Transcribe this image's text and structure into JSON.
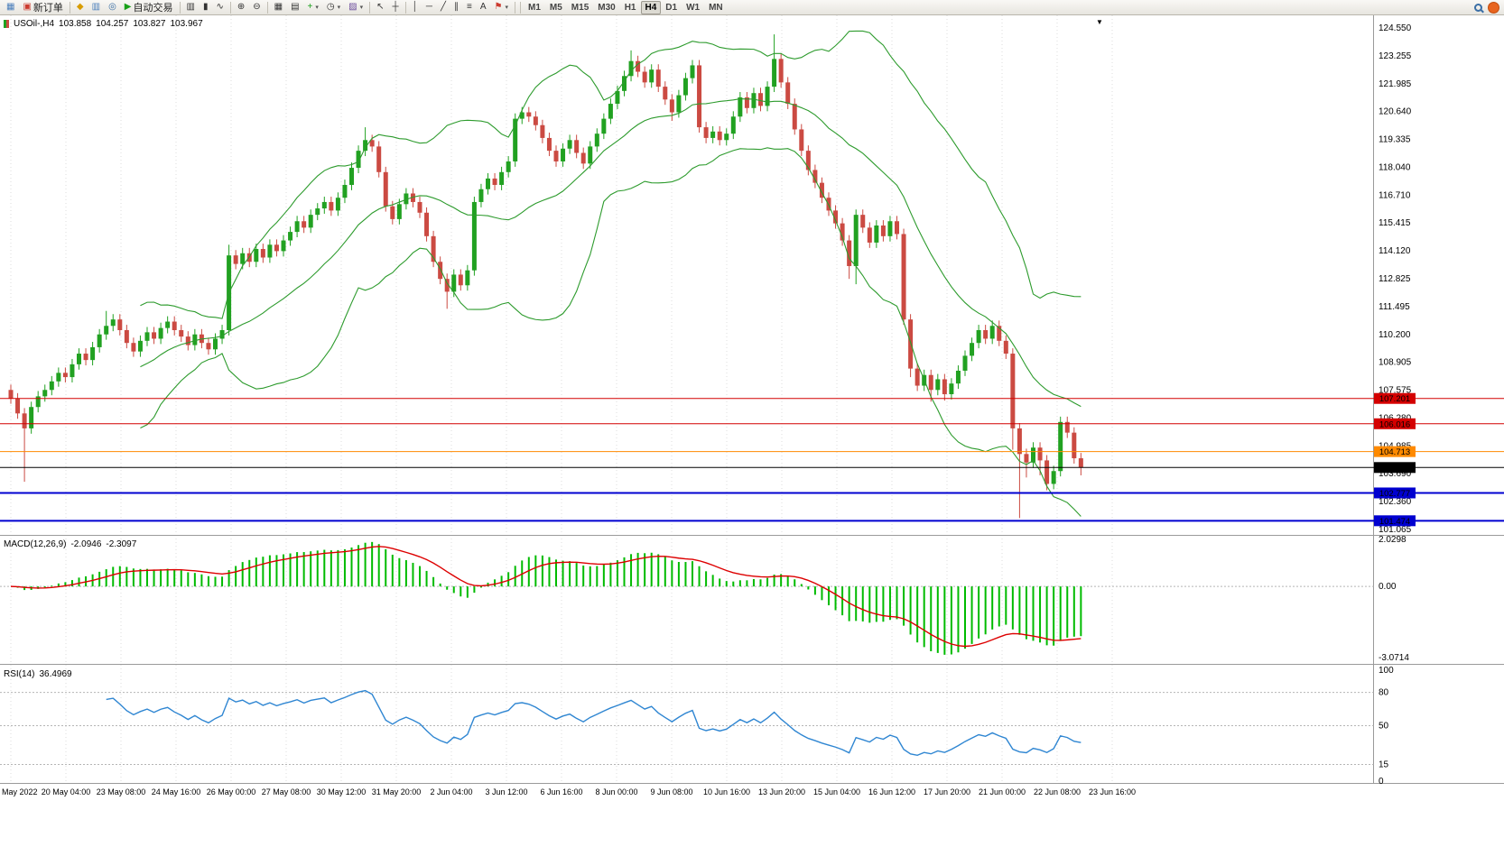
{
  "toolbar": {
    "buttons": [
      {
        "name": "new-chart-button",
        "icon": "▦",
        "icon_color": "#4a7ebb"
      },
      {
        "name": "new-order-button",
        "icon": "▣",
        "icon_color": "#cc3b2f",
        "label": "新订单"
      },
      {
        "sep": true
      },
      {
        "name": "market-watch-button",
        "icon": "◆",
        "icon_color": "#d89c00"
      },
      {
        "name": "data-window-button",
        "icon": "▥",
        "icon_color": "#4a7ebb"
      },
      {
        "name": "navigator-button",
        "icon": "◎",
        "icon_color": "#3a6ea5"
      },
      {
        "name": "autotrade-button",
        "icon": "▶",
        "icon_color": "#18a018",
        "label": "自动交易"
      },
      {
        "sep": true
      },
      {
        "name": "bar-chart-button",
        "icon": "▥",
        "icon_color": "#333333"
      },
      {
        "name": "candlestick-chart-button",
        "icon": "▮",
        "icon_color": "#333333"
      },
      {
        "name": "line-chart-button",
        "icon": "∿",
        "icon_color": "#333333"
      },
      {
        "sep": true
      },
      {
        "name": "zoom-in-button",
        "icon": "⊕",
        "icon_color": "#333333"
      },
      {
        "name": "zoom-out-button",
        "icon": "⊖",
        "icon_color": "#333333"
      },
      {
        "sep": true
      },
      {
        "name": "tile-windows-button",
        "icon": "▦",
        "icon_color": "#333333"
      },
      {
        "name": "auto-arrange-button",
        "icon": "▤",
        "icon_color": "#333333"
      },
      {
        "name": "indicators-button",
        "icon": "+",
        "icon_color": "#18a018",
        "caret": true
      },
      {
        "name": "periods-button",
        "icon": "◷",
        "icon_color": "#333333",
        "caret": true
      },
      {
        "name": "templates-button",
        "icon": "▨",
        "icon_color": "#6a4a9c",
        "caret": true
      },
      {
        "sep": true
      },
      {
        "name": "cursor-button",
        "icon": "↖",
        "icon_color": "#333333"
      },
      {
        "name": "crosshair-button",
        "icon": "┼",
        "icon_color": "#333333"
      },
      {
        "sep": true
      },
      {
        "name": "vertical-line-button",
        "icon": "│",
        "icon_color": "#333333"
      },
      {
        "name": "horizontal-line-button",
        "icon": "─",
        "icon_color": "#333333"
      },
      {
        "name": "trendline-button",
        "icon": "╱",
        "icon_color": "#333333"
      },
      {
        "name": "channel-button",
        "icon": "∥",
        "icon_color": "#333333"
      },
      {
        "name": "fibonacci-button",
        "icon": "≡",
        "icon_color": "#333333"
      },
      {
        "name": "text-button",
        "icon": "A",
        "icon_color": "#333333"
      },
      {
        "name": "arrows-button",
        "icon": "⚑",
        "icon_color": "#cc3b2f",
        "caret": true
      },
      {
        "sep": true
      }
    ],
    "timeframes": [
      "M1",
      "M5",
      "M15",
      "M30",
      "H1",
      "H4",
      "D1",
      "W1",
      "MN"
    ],
    "active_timeframe": "H4"
  },
  "chart": {
    "header": {
      "symbol": "USOil-,H4",
      "open": "103.858",
      "high": "104.257",
      "low": "103.827",
      "close": "103.967"
    }
  },
  "chart_data": {
    "type": "candlestick",
    "symbol": "USOil-",
    "timeframe": "H4",
    "colors": {
      "up": "#21a121",
      "down": "#cb4a42",
      "bollinger": "#2d9b2d",
      "macd_hist": "#00bb00",
      "macd_signal": "#dd0000",
      "rsi": "#2f86d2",
      "grid": "#dcdcdc"
    },
    "price_axis": {
      "min": 101.065,
      "max": 124.55,
      "labels": [
        "124.550",
        "123.255",
        "121.985",
        "120.640",
        "119.335",
        "118.040",
        "116.710",
        "115.415",
        "114.120",
        "112.825",
        "111.495",
        "110.200",
        "108.905",
        "107.575",
        "106.280",
        "104.985",
        "103.690",
        "102.360",
        "101.065"
      ]
    },
    "x_axis": {
      "labels": [
        "May 2022",
        "20 May 04:00",
        "23 May 08:00",
        "24 May 16:00",
        "26 May 00:00",
        "27 May 08:00",
        "30 May 12:00",
        "31 May 20:00",
        "2 Jun 04:00",
        "3 Jun 12:00",
        "6 Jun 16:00",
        "8 Jun 00:00",
        "9 Jun 08:00",
        "10 Jun 16:00",
        "13 Jun 20:00",
        "15 Jun 04:00",
        "16 Jun 12:00",
        "17 Jun 20:00",
        "21 Jun 00:00",
        "22 Jun 08:00",
        "23 Jun 16:00"
      ]
    },
    "hlines": [
      {
        "price": 107.201,
        "label": "107.201",
        "color": "#d40000",
        "width": 1
      },
      {
        "price": 106.016,
        "label": "106.016",
        "color": "#d40000",
        "width": 1
      },
      {
        "price": 104.713,
        "label": "104.713",
        "color": "#ff8a00",
        "width": 1
      },
      {
        "price": 103.967,
        "label": "103.967",
        "color": "#000000",
        "width": 1,
        "current": true
      },
      {
        "price": 102.777,
        "label": "102.777",
        "color": "#0000d0",
        "width": 2
      },
      {
        "price": 101.474,
        "label": "101.474",
        "color": "#0000d0",
        "width": 2
      }
    ],
    "indicators": {
      "bollinger": {
        "period": 20,
        "deviation": 2,
        "color": "#2d9b2d"
      },
      "macd": {
        "label": "MACD(12,26,9)",
        "value_main": "-2.0946",
        "value_signal": "-2.3097",
        "params": {
          "fast": 12,
          "slow": 26,
          "signal": 9
        },
        "axis": [
          {
            "label": "2.0298",
            "value": 2.0298
          },
          {
            "label": "0.00",
            "value": 0
          },
          {
            "label": "-3.0714",
            "value": -3.0714
          }
        ]
      },
      "rsi": {
        "label": "RSI(14)",
        "value": "36.4969",
        "period": 14,
        "axis": [
          {
            "label": "100",
            "value": 100
          },
          {
            "label": "80",
            "value": 80
          },
          {
            "label": "50",
            "value": 50
          },
          {
            "label": "15",
            "value": 15
          },
          {
            "label": "0",
            "value": 0
          }
        ],
        "levels": [
          80,
          50,
          15
        ]
      }
    },
    "candles": [
      [
        107.6,
        107.85,
        106.95,
        107.2
      ],
      [
        107.2,
        107.45,
        106.25,
        106.5
      ],
      [
        106.5,
        106.75,
        103.3,
        105.8
      ],
      [
        105.8,
        107.05,
        105.55,
        106.8
      ],
      [
        106.8,
        107.55,
        106.55,
        107.3
      ],
      [
        107.3,
        107.85,
        107.05,
        107.6
      ],
      [
        107.6,
        108.25,
        107.35,
        108.0
      ],
      [
        108.0,
        108.65,
        107.75,
        108.4
      ],
      [
        108.4,
        108.65,
        107.95,
        108.2
      ],
      [
        108.2,
        109.05,
        107.95,
        108.8
      ],
      [
        108.8,
        109.55,
        108.55,
        109.3
      ],
      [
        109.3,
        109.55,
        108.75,
        109.0
      ],
      [
        109.0,
        109.85,
        108.75,
        109.6
      ],
      [
        109.6,
        110.45,
        109.35,
        110.2
      ],
      [
        110.2,
        111.3,
        109.95,
        110.6
      ],
      [
        110.6,
        111.15,
        110.35,
        110.9
      ],
      [
        110.9,
        111.15,
        110.15,
        110.4
      ],
      [
        110.4,
        110.65,
        109.55,
        109.8
      ],
      [
        109.8,
        110.05,
        109.15,
        109.4
      ],
      [
        109.4,
        110.15,
        109.15,
        109.9
      ],
      [
        109.9,
        110.55,
        109.65,
        110.3
      ],
      [
        110.3,
        110.55,
        109.75,
        110.0
      ],
      [
        110.0,
        110.75,
        109.75,
        110.5
      ],
      [
        110.5,
        111.05,
        110.25,
        110.8
      ],
      [
        110.8,
        111.05,
        110.15,
        110.4
      ],
      [
        110.4,
        110.65,
        109.85,
        110.1
      ],
      [
        110.1,
        110.35,
        109.45,
        109.7
      ],
      [
        109.7,
        110.45,
        109.45,
        110.2
      ],
      [
        110.2,
        110.45,
        109.55,
        109.8
      ],
      [
        109.8,
        110.05,
        109.25,
        109.5
      ],
      [
        109.5,
        110.25,
        109.25,
        110.0
      ],
      [
        110.0,
        110.65,
        109.75,
        110.4
      ],
      [
        110.4,
        114.4,
        110.15,
        113.9
      ],
      [
        113.9,
        114.15,
        113.25,
        113.5
      ],
      [
        113.5,
        114.25,
        113.25,
        114.0
      ],
      [
        114.0,
        114.25,
        113.35,
        113.6
      ],
      [
        113.6,
        114.45,
        113.35,
        114.2
      ],
      [
        114.2,
        114.45,
        113.55,
        113.8
      ],
      [
        113.8,
        114.65,
        113.55,
        114.4
      ],
      [
        114.4,
        114.65,
        113.85,
        114.1
      ],
      [
        114.1,
        114.85,
        113.85,
        114.6
      ],
      [
        114.6,
        115.25,
        114.35,
        115.0
      ],
      [
        115.0,
        115.75,
        114.75,
        115.5
      ],
      [
        115.5,
        115.75,
        114.95,
        115.2
      ],
      [
        115.2,
        116.05,
        114.95,
        115.8
      ],
      [
        115.8,
        116.35,
        115.55,
        116.1
      ],
      [
        116.1,
        116.65,
        115.85,
        116.4
      ],
      [
        116.4,
        116.65,
        115.75,
        116.0
      ],
      [
        116.0,
        116.85,
        115.75,
        116.6
      ],
      [
        116.6,
        117.45,
        116.35,
        117.2
      ],
      [
        117.2,
        118.25,
        116.95,
        118.0
      ],
      [
        118.0,
        119.05,
        117.75,
        118.8
      ],
      [
        118.8,
        119.9,
        118.55,
        119.3
      ],
      [
        119.3,
        119.55,
        118.75,
        119.0
      ],
      [
        119.0,
        119.25,
        117.55,
        117.8
      ],
      [
        117.8,
        118.05,
        115.95,
        116.2
      ],
      [
        116.2,
        116.45,
        115.35,
        115.6
      ],
      [
        115.6,
        116.55,
        115.35,
        116.3
      ],
      [
        116.3,
        117.05,
        116.05,
        116.8
      ],
      [
        116.8,
        117.05,
        116.15,
        116.4
      ],
      [
        116.4,
        116.65,
        115.65,
        115.9
      ],
      [
        115.9,
        116.15,
        114.55,
        114.8
      ],
      [
        114.8,
        115.05,
        113.35,
        113.6
      ],
      [
        113.6,
        113.85,
        112.55,
        112.8
      ],
      [
        112.8,
        113.05,
        111.4,
        112.2
      ],
      [
        112.2,
        113.25,
        111.95,
        113.0
      ],
      [
        113.0,
        113.25,
        112.25,
        112.5
      ],
      [
        112.5,
        113.45,
        112.25,
        113.2
      ],
      [
        113.2,
        116.65,
        112.95,
        116.4
      ],
      [
        116.4,
        117.25,
        116.15,
        117.0
      ],
      [
        117.0,
        117.75,
        116.75,
        117.5
      ],
      [
        117.5,
        117.75,
        116.95,
        117.2
      ],
      [
        117.2,
        118.05,
        116.95,
        117.8
      ],
      [
        117.8,
        118.55,
        117.55,
        118.3
      ],
      [
        118.3,
        120.55,
        118.05,
        120.3
      ],
      [
        120.3,
        120.85,
        120.05,
        120.6
      ],
      [
        120.6,
        120.85,
        120.15,
        120.4
      ],
      [
        120.4,
        120.65,
        119.75,
        120.0
      ],
      [
        120.0,
        120.25,
        119.15,
        119.4
      ],
      [
        119.4,
        119.65,
        118.55,
        118.8
      ],
      [
        118.8,
        119.05,
        118.05,
        118.3
      ],
      [
        118.3,
        119.15,
        118.05,
        118.9
      ],
      [
        118.9,
        119.55,
        118.65,
        119.3
      ],
      [
        119.3,
        119.55,
        118.45,
        118.7
      ],
      [
        118.7,
        118.95,
        117.95,
        118.2
      ],
      [
        118.2,
        119.25,
        117.95,
        119.0
      ],
      [
        119.0,
        119.85,
        118.75,
        119.6
      ],
      [
        119.6,
        120.55,
        119.35,
        120.3
      ],
      [
        120.3,
        121.25,
        120.05,
        121.0
      ],
      [
        121.0,
        121.85,
        120.75,
        121.6
      ],
      [
        121.6,
        122.55,
        121.35,
        122.3
      ],
      [
        122.3,
        123.5,
        122.05,
        123.0
      ],
      [
        123.0,
        123.25,
        122.25,
        122.5
      ],
      [
        122.5,
        122.75,
        121.75,
        122.0
      ],
      [
        122.0,
        122.85,
        121.75,
        122.6
      ],
      [
        122.6,
        122.85,
        121.55,
        121.8
      ],
      [
        121.8,
        122.05,
        120.95,
        121.2
      ],
      [
        121.2,
        121.45,
        120.2,
        120.6
      ],
      [
        120.6,
        121.65,
        120.35,
        121.4
      ],
      [
        121.4,
        122.45,
        121.15,
        122.2
      ],
      [
        122.2,
        123.05,
        121.95,
        122.8
      ],
      [
        122.8,
        123.05,
        119.65,
        119.9
      ],
      [
        119.9,
        120.15,
        119.15,
        119.4
      ],
      [
        119.4,
        119.95,
        119.15,
        119.7
      ],
      [
        119.7,
        119.95,
        119.05,
        119.3
      ],
      [
        119.3,
        119.85,
        119.05,
        119.6
      ],
      [
        119.6,
        120.65,
        119.35,
        120.4
      ],
      [
        120.4,
        121.55,
        120.15,
        121.3
      ],
      [
        121.3,
        121.55,
        120.55,
        120.8
      ],
      [
        120.8,
        121.75,
        120.55,
        121.5
      ],
      [
        121.5,
        121.75,
        120.65,
        120.9
      ],
      [
        120.9,
        122.05,
        120.65,
        121.8
      ],
      [
        121.8,
        124.25,
        121.55,
        123.1
      ],
      [
        123.1,
        123.35,
        121.75,
        122.0
      ],
      [
        122.0,
        122.25,
        120.75,
        121.0
      ],
      [
        121.0,
        121.25,
        119.55,
        119.8
      ],
      [
        119.8,
        120.05,
        118.55,
        118.8
      ],
      [
        118.8,
        119.05,
        117.65,
        117.9
      ],
      [
        117.9,
        118.15,
        117.05,
        117.3
      ],
      [
        117.3,
        117.55,
        116.35,
        116.6
      ],
      [
        116.6,
        116.85,
        115.75,
        116.0
      ],
      [
        116.0,
        116.25,
        115.15,
        115.4
      ],
      [
        115.4,
        115.65,
        114.35,
        114.6
      ],
      [
        114.6,
        114.85,
        112.8,
        113.4
      ],
      [
        113.4,
        116.05,
        112.55,
        115.8
      ],
      [
        115.8,
        116.05,
        114.95,
        115.2
      ],
      [
        115.2,
        115.45,
        114.25,
        114.5
      ],
      [
        114.5,
        115.55,
        114.25,
        115.3
      ],
      [
        115.3,
        115.55,
        114.55,
        114.8
      ],
      [
        114.8,
        115.75,
        114.55,
        115.5
      ],
      [
        115.5,
        115.75,
        114.65,
        114.9
      ],
      [
        114.9,
        115.15,
        110.65,
        110.9
      ],
      [
        110.9,
        111.15,
        108.2,
        108.6
      ],
      [
        108.6,
        108.85,
        107.55,
        107.8
      ],
      [
        107.8,
        108.55,
        107.55,
        108.3
      ],
      [
        108.3,
        108.55,
        107.05,
        107.6
      ],
      [
        107.6,
        108.35,
        107.35,
        108.1
      ],
      [
        108.1,
        108.35,
        107.1,
        107.4
      ],
      [
        107.4,
        108.15,
        107.15,
        107.9
      ],
      [
        107.9,
        108.75,
        107.65,
        108.5
      ],
      [
        108.5,
        109.45,
        108.25,
        109.2
      ],
      [
        109.2,
        110.05,
        108.95,
        109.8
      ],
      [
        109.8,
        110.65,
        109.55,
        110.4
      ],
      [
        110.4,
        110.65,
        109.75,
        110.0
      ],
      [
        110.0,
        110.85,
        109.75,
        110.6
      ],
      [
        110.6,
        110.85,
        109.65,
        109.9
      ],
      [
        109.9,
        110.15,
        109.05,
        109.3
      ],
      [
        109.3,
        109.55,
        104.8,
        105.8
      ],
      [
        105.8,
        106.05,
        101.6,
        104.6
      ],
      [
        104.6,
        104.85,
        103.5,
        104.2
      ],
      [
        104.2,
        105.15,
        103.95,
        104.9
      ],
      [
        104.9,
        105.15,
        103.6,
        104.3
      ],
      [
        104.3,
        104.55,
        102.9,
        103.2
      ],
      [
        103.2,
        104.05,
        102.95,
        103.8
      ],
      [
        103.8,
        106.35,
        103.55,
        106.1
      ],
      [
        106.1,
        106.35,
        105.35,
        105.6
      ],
      [
        105.6,
        105.85,
        104.15,
        104.4
      ],
      [
        104.4,
        104.65,
        103.6,
        103.97
      ]
    ]
  }
}
